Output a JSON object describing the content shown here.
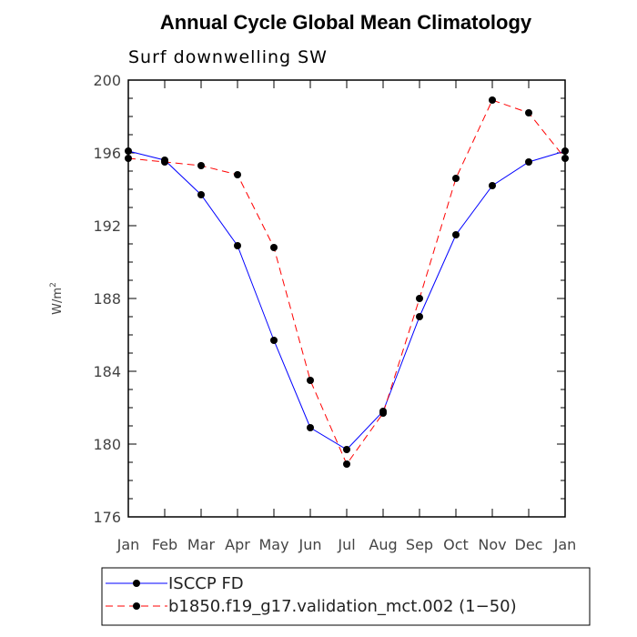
{
  "chart_data": {
    "type": "line",
    "title": "Annual Cycle Global Mean Climatology",
    "subtitle": "Surf downwelling SW",
    "xlabel": "",
    "ylabel": "W/m",
    "ylabel_superscript": "2",
    "categories": [
      "Jan",
      "Feb",
      "Mar",
      "Apr",
      "May",
      "Jun",
      "Jul",
      "Aug",
      "Sep",
      "Oct",
      "Nov",
      "Dec",
      "Jan"
    ],
    "ylim": [
      176,
      200
    ],
    "yticks": [
      "176",
      "180",
      "184",
      "188",
      "192",
      "196",
      "200"
    ],
    "grid": false,
    "legend_position": "bottom",
    "series": [
      {
        "name": "ISCCP FD",
        "color": "#0000ff",
        "dash": "solid",
        "values": [
          196.1,
          195.6,
          193.7,
          190.9,
          185.7,
          180.9,
          179.7,
          181.8,
          187.0,
          191.5,
          194.2,
          195.5,
          196.1
        ]
      },
      {
        "name": "b1850.f19_g17.validation_mct.002 (1−50)",
        "color": "#ff0000",
        "dash": "dashed",
        "values": [
          195.7,
          195.5,
          195.3,
          194.8,
          190.8,
          183.5,
          178.9,
          181.7,
          188.0,
          194.6,
          198.9,
          198.2,
          195.7
        ]
      }
    ]
  }
}
